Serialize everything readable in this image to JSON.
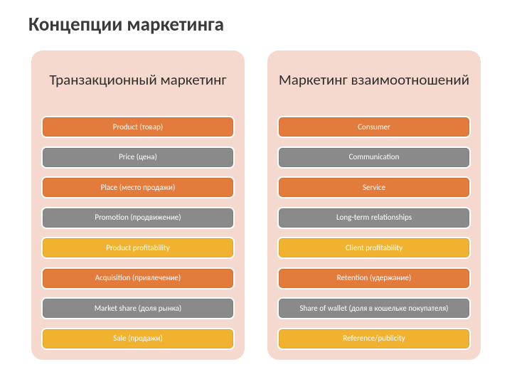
{
  "title": "Концепции маркетинга",
  "panel_bg": "#f6d9ce",
  "item_colors": [
    "#e37b3c",
    "#8a8a8a",
    "#e37b3c",
    "#8a8a8a",
    "#f0b22f",
    "#e37b3c",
    "#8a8a8a",
    "#f0b22f"
  ],
  "columns": [
    {
      "heading": "Транзакционный маркетинг",
      "items": [
        "Product (товар)",
        "Price (цена)",
        "Place (место продажи)",
        "Promotion (продвижение)",
        "Product profitability",
        "Acquisition (привлечение)",
        "Market share (доля рынка)",
        "Sale (продажи)"
      ]
    },
    {
      "heading": "Маркетинг взаимоотношений",
      "items": [
        "Consumer",
        "Communication",
        "Service",
        "Long-term relationships",
        "Client profitability",
        "Retention (удержание)",
        "Share of wallet (доля в кошельке покупателя)",
        "Reference/publicity"
      ]
    }
  ]
}
